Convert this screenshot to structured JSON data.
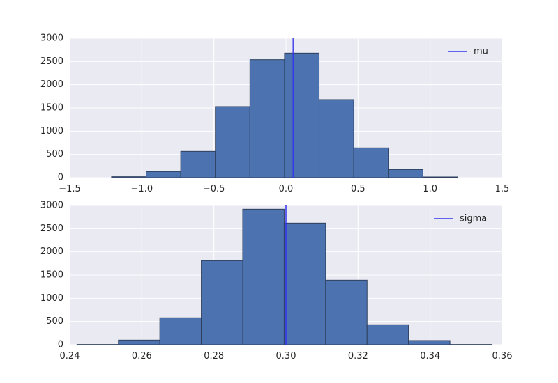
{
  "chart_data": [
    {
      "type": "bar",
      "subtype": "histogram",
      "title": "",
      "xlabel": "",
      "ylabel": "",
      "xlim": [
        -1.5,
        1.5
      ],
      "ylim": [
        0,
        3000
      ],
      "xticks": [
        -1.5,
        -1.0,
        -0.5,
        0.0,
        0.5,
        1.0,
        1.5
      ],
      "xtick_labels": [
        "−1.5",
        "−1.0",
        "−0.5",
        "0.0",
        "0.5",
        "1.0",
        "1.5"
      ],
      "yticks": [
        0,
        500,
        1000,
        1500,
        2000,
        2500,
        3000
      ],
      "ytick_labels": [
        "0",
        "500",
        "1000",
        "1500",
        "2000",
        "2500",
        "3000"
      ],
      "bin_edges": [
        -1.21,
        -0.97,
        -0.73,
        -0.49,
        -0.25,
        -0.01,
        0.23,
        0.47,
        0.71,
        0.95,
        1.19
      ],
      "counts": [
        20,
        130,
        565,
        1530,
        2540,
        2680,
        1680,
        640,
        175,
        15
      ],
      "vline": {
        "x": 0.05,
        "label": "mu"
      },
      "legend": {
        "position": "top-right",
        "entries": [
          "mu"
        ]
      },
      "grid": true,
      "bar_color": "#4c72b0",
      "line_color": "#3333ee"
    },
    {
      "type": "bar",
      "subtype": "histogram",
      "title": "",
      "xlabel": "",
      "ylabel": "",
      "xlim": [
        0.24,
        0.36
      ],
      "ylim": [
        0,
        3000
      ],
      "xticks": [
        0.24,
        0.26,
        0.28,
        0.3,
        0.32,
        0.34,
        0.36
      ],
      "xtick_labels": [
        "0.24",
        "0.26",
        "0.28",
        "0.30",
        "0.32",
        "0.34",
        "0.36"
      ],
      "yticks": [
        0,
        500,
        1000,
        1500,
        2000,
        2500,
        3000
      ],
      "ytick_labels": [
        "0",
        "500",
        "1000",
        "1500",
        "2000",
        "2500",
        "3000"
      ],
      "bin_edges": [
        0.242,
        0.2535,
        0.265,
        0.2765,
        0.288,
        0.2995,
        0.311,
        0.3225,
        0.334,
        0.3455,
        0.357
      ],
      "counts": [
        5,
        100,
        580,
        1810,
        2920,
        2620,
        1390,
        430,
        90,
        5
      ],
      "vline": {
        "x": 0.3,
        "label": "sigma"
      },
      "legend": {
        "position": "top-right",
        "entries": [
          "sigma"
        ]
      },
      "grid": true,
      "bar_color": "#4c72b0",
      "line_color": "#3333ee"
    }
  ],
  "style": {
    "axes_bg": "#eaeaf2",
    "grid_color": "#ffffff",
    "bar_edge": "#2d3f5c"
  }
}
